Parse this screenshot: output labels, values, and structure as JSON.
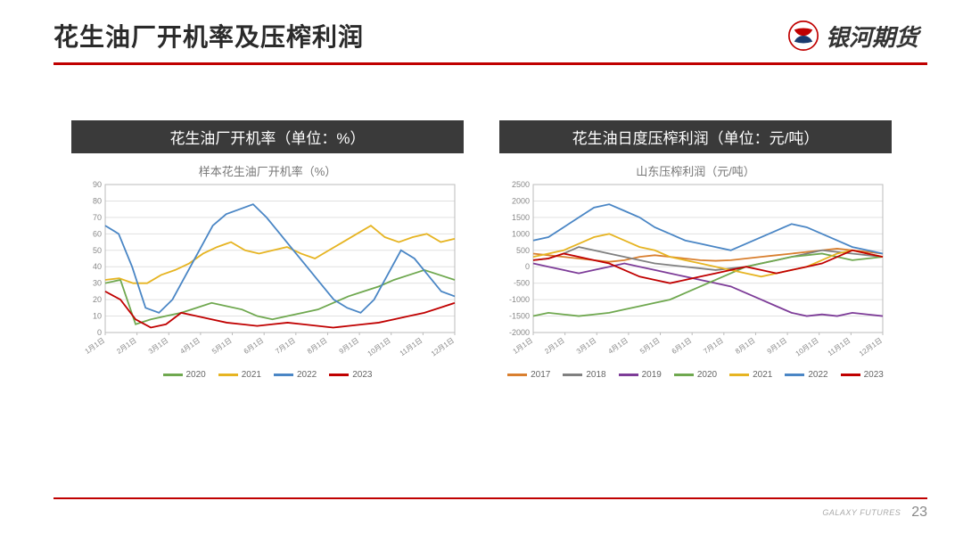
{
  "colors": {
    "accent_red": "#c00000",
    "header_bg": "#3a3a3a",
    "axis": "#bbbbbb",
    "grid": "#e0e0e0",
    "tick_text": "#888888",
    "chart_title": "#777777",
    "page_bg": "#ffffff"
  },
  "page": {
    "title": "花生油厂开机率及压榨利润",
    "brand_text": "银河期货",
    "footer_brand": "GALAXY FUTURES",
    "page_number": "23"
  },
  "chart_left": {
    "header": "花生油厂开机率（单位：%）",
    "inner_title": "样本花生油厂开机率（%）",
    "type": "line",
    "title_fontsize": 13,
    "ylim": [
      0,
      90
    ],
    "ytick_step": 10,
    "yticks": [
      0,
      10,
      20,
      30,
      40,
      50,
      60,
      70,
      80,
      90
    ],
    "x_labels": [
      "1月1日",
      "2月1日",
      "3月1日",
      "4月1日",
      "5月1日",
      "6月1日",
      "7月1日",
      "8月1日",
      "9月1日",
      "10月1日",
      "11月1日",
      "12月1日"
    ],
    "line_width": 1.8,
    "background_color": "#ffffff",
    "series": [
      {
        "name": "2020",
        "color": "#6fa84f",
        "values": [
          30,
          32,
          5,
          8,
          10,
          12,
          15,
          18,
          16,
          14,
          10,
          8,
          10,
          12,
          14,
          18,
          22,
          25,
          28,
          32,
          35,
          38,
          35,
          32
        ]
      },
      {
        "name": "2021",
        "color": "#e6b422",
        "values": [
          32,
          33,
          30,
          30,
          35,
          38,
          42,
          48,
          52,
          55,
          50,
          48,
          50,
          52,
          48,
          45,
          50,
          55,
          60,
          65,
          58,
          55,
          58,
          60,
          55,
          57
        ]
      },
      {
        "name": "2022",
        "color": "#4a86c5",
        "values": [
          65,
          60,
          40,
          15,
          12,
          20,
          35,
          50,
          65,
          72,
          75,
          78,
          70,
          60,
          50,
          40,
          30,
          20,
          15,
          12,
          20,
          35,
          50,
          45,
          35,
          25,
          22
        ]
      },
      {
        "name": "2023",
        "color": "#c00000",
        "values": [
          25,
          20,
          8,
          3,
          5,
          12,
          10,
          8,
          6,
          5,
          4,
          5,
          6,
          5,
          4,
          3,
          4,
          5,
          6,
          8,
          10,
          12,
          15,
          18
        ]
      }
    ]
  },
  "chart_right": {
    "header": "花生油日度压榨利润（单位：元/吨）",
    "inner_title": "山东压榨利润（元/吨）",
    "type": "line",
    "title_fontsize": 13,
    "ylim": [
      -2000,
      2500
    ],
    "yticks": [
      -2000,
      -1500,
      -1000,
      -500,
      0,
      500,
      1000,
      1500,
      2000,
      2500
    ],
    "x_labels": [
      "1月1日",
      "2月1日",
      "3月1日",
      "4月1日",
      "5月1日",
      "6月1日",
      "7月1日",
      "8月1日",
      "9月1日",
      "10月1日",
      "11月1日",
      "12月1日"
    ],
    "line_width": 1.6,
    "background_color": "#ffffff",
    "series": [
      {
        "name": "2017",
        "color": "#d97f2f",
        "values": [
          400,
          350,
          300,
          250,
          200,
          150,
          200,
          300,
          350,
          300,
          250,
          200,
          180,
          200,
          250,
          300,
          350,
          400,
          450,
          500,
          550,
          500,
          450,
          400
        ]
      },
      {
        "name": "2018",
        "color": "#808080",
        "values": [
          200,
          250,
          400,
          600,
          500,
          400,
          300,
          200,
          100,
          50,
          0,
          -50,
          -100,
          -50,
          0,
          100,
          200,
          300,
          400,
          500,
          450,
          400,
          350,
          300
        ]
      },
      {
        "name": "2019",
        "color": "#7d3c98",
        "values": [
          100,
          0,
          -100,
          -200,
          -100,
          0,
          100,
          0,
          -100,
          -200,
          -300,
          -400,
          -500,
          -600,
          -800,
          -1000,
          -1200,
          -1400,
          -1500,
          -1450,
          -1500,
          -1400,
          -1450,
          -1500
        ]
      },
      {
        "name": "2020",
        "color": "#6fa84f",
        "values": [
          -1500,
          -1400,
          -1450,
          -1500,
          -1450,
          -1400,
          -1300,
          -1200,
          -1100,
          -1000,
          -800,
          -600,
          -400,
          -200,
          0,
          100,
          200,
          300,
          350,
          400,
          300,
          200,
          250,
          300
        ]
      },
      {
        "name": "2021",
        "color": "#e6b422",
        "values": [
          300,
          400,
          500,
          700,
          900,
          1000,
          800,
          600,
          500,
          300,
          200,
          100,
          0,
          -100,
          -200,
          -300,
          -200,
          -100,
          0,
          200,
          400,
          500,
          400,
          300
        ]
      },
      {
        "name": "2022",
        "color": "#4a86c5",
        "values": [
          800,
          900,
          1200,
          1500,
          1800,
          1900,
          1700,
          1500,
          1200,
          1000,
          800,
          700,
          600,
          500,
          700,
          900,
          1100,
          1300,
          1200,
          1000,
          800,
          600,
          500,
          400
        ]
      },
      {
        "name": "2023",
        "color": "#c00000",
        "values": [
          200,
          250,
          400,
          300,
          200,
          100,
          -100,
          -300,
          -400,
          -500,
          -400,
          -300,
          -200,
          -100,
          0,
          -100,
          -200,
          -100,
          0,
          100,
          300,
          500,
          400,
          300
        ]
      }
    ]
  }
}
